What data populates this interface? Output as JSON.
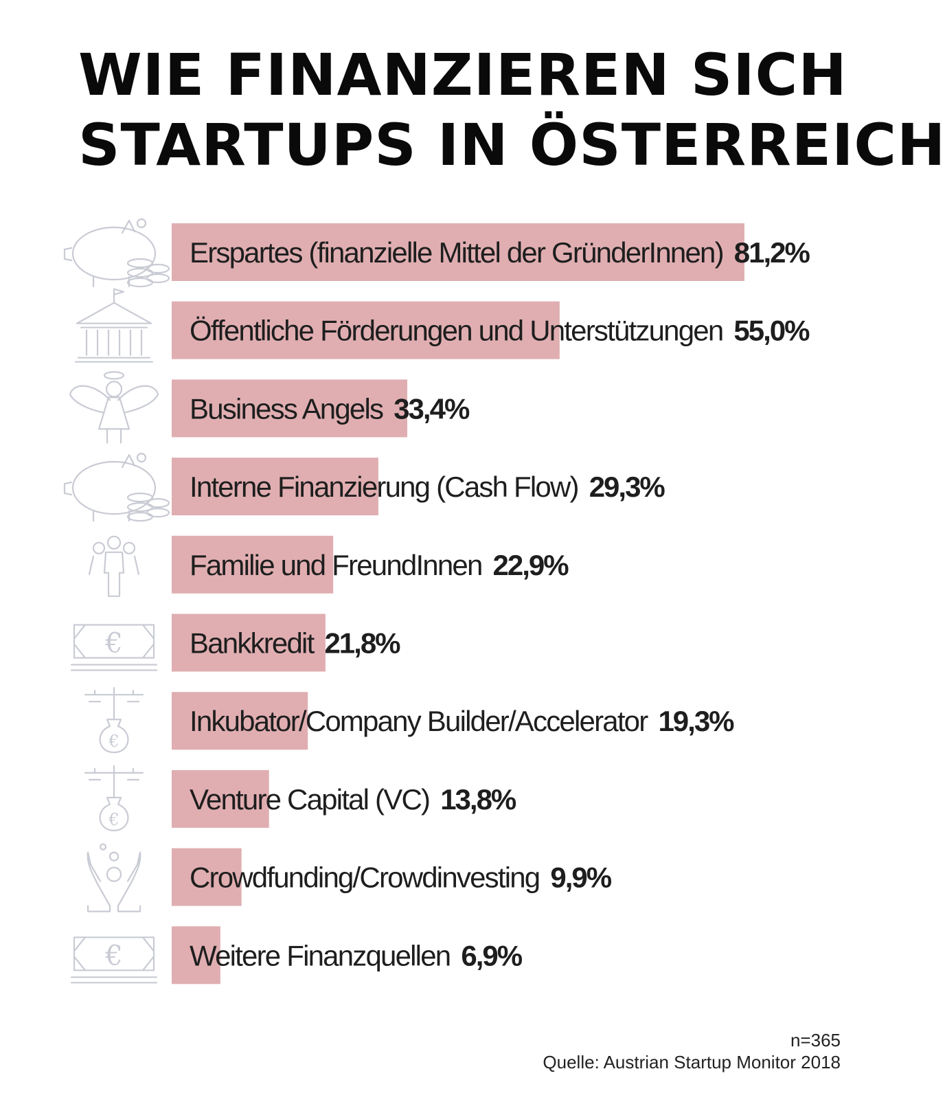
{
  "chart_data": {
    "type": "bar",
    "orientation": "horizontal",
    "title": "WIE FINANZIEREN SICH STARTUPS IN ÖSTERREICH?",
    "title_lines": [
      "WIE FINANZIEREN SICH",
      "STARTUPS IN ÖSTERREICH?"
    ],
    "xlim": [
      0,
      100
    ],
    "grid": false,
    "legend": "none",
    "bar_color": "#e0aeb1",
    "categories": [
      "Erspartes (finanzielle Mittel der GründerInnen)",
      "Öffentliche Förderungen und Unterstützungen",
      "Business Angels",
      "Interne Finanzierung (Cash Flow)",
      "Familie und FreundInnen",
      "Bankkredit",
      "Inkubator/Company Builder/Accelerator",
      "Venture Capital (VC)",
      "Crowdfunding/Crowdinvesting",
      "Weitere Finanzquellen"
    ],
    "values": [
      81.2,
      55.0,
      33.4,
      29.3,
      22.9,
      21.8,
      19.3,
      13.8,
      9.9,
      6.9
    ],
    "value_labels": [
      "81,2%",
      "55,0%",
      "33,4%",
      "29,3%",
      "22,9%",
      "21,8%",
      "19,3%",
      "13,8%",
      "9,9%",
      "6,9%"
    ],
    "icons": [
      "piggy-bank-coins-icon",
      "bank-building-icon",
      "angel-icon",
      "piggy-bank-coins-icon",
      "family-icon",
      "euro-banknote-icon",
      "money-bag-tree-icon",
      "money-bag-tree-icon",
      "hands-coins-icon",
      "euro-banknote-icon"
    ]
  },
  "footer": {
    "sample_size": "n=365",
    "source": "Quelle: Austrian Startup Monitor 2018"
  }
}
